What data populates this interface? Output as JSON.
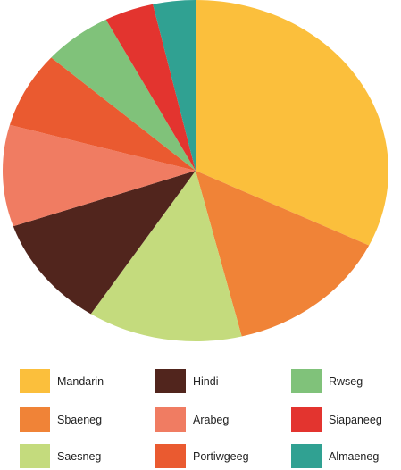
{
  "chart_data": {
    "type": "pie",
    "title": "",
    "slices": [
      {
        "label": "Mandarin",
        "value": 33.5,
        "color": "#FBBF3C"
      },
      {
        "label": "Sbaeneg",
        "value": 14.5,
        "color": "#F08337"
      },
      {
        "label": "Saesneg",
        "value": 13.5,
        "color": "#C4DB7D"
      },
      {
        "label": "Hindi",
        "value": 11.0,
        "color": "#51251D"
      },
      {
        "label": "Arabeg",
        "value": 10.0,
        "color": "#F07C62"
      },
      {
        "label": "Portiwgeeg",
        "value": 7.5,
        "color": "#EA5A30"
      },
      {
        "label": "Rwseg",
        "value": 6.0,
        "color": "#80C27A"
      },
      {
        "label": "Siapaneeg",
        "value": 4.3,
        "color": "#E3342F"
      },
      {
        "label": "Almaeneg",
        "value": 3.7,
        "color": "#30A192"
      }
    ],
    "legend_placement": "bottom",
    "legend": [
      "Mandarin",
      "Sbaeneg",
      "Saesneg",
      "Hindi",
      "Arabeg",
      "Portiwgeeg",
      "Rwseg",
      "Siapaneeg",
      "Almaeneg"
    ]
  }
}
